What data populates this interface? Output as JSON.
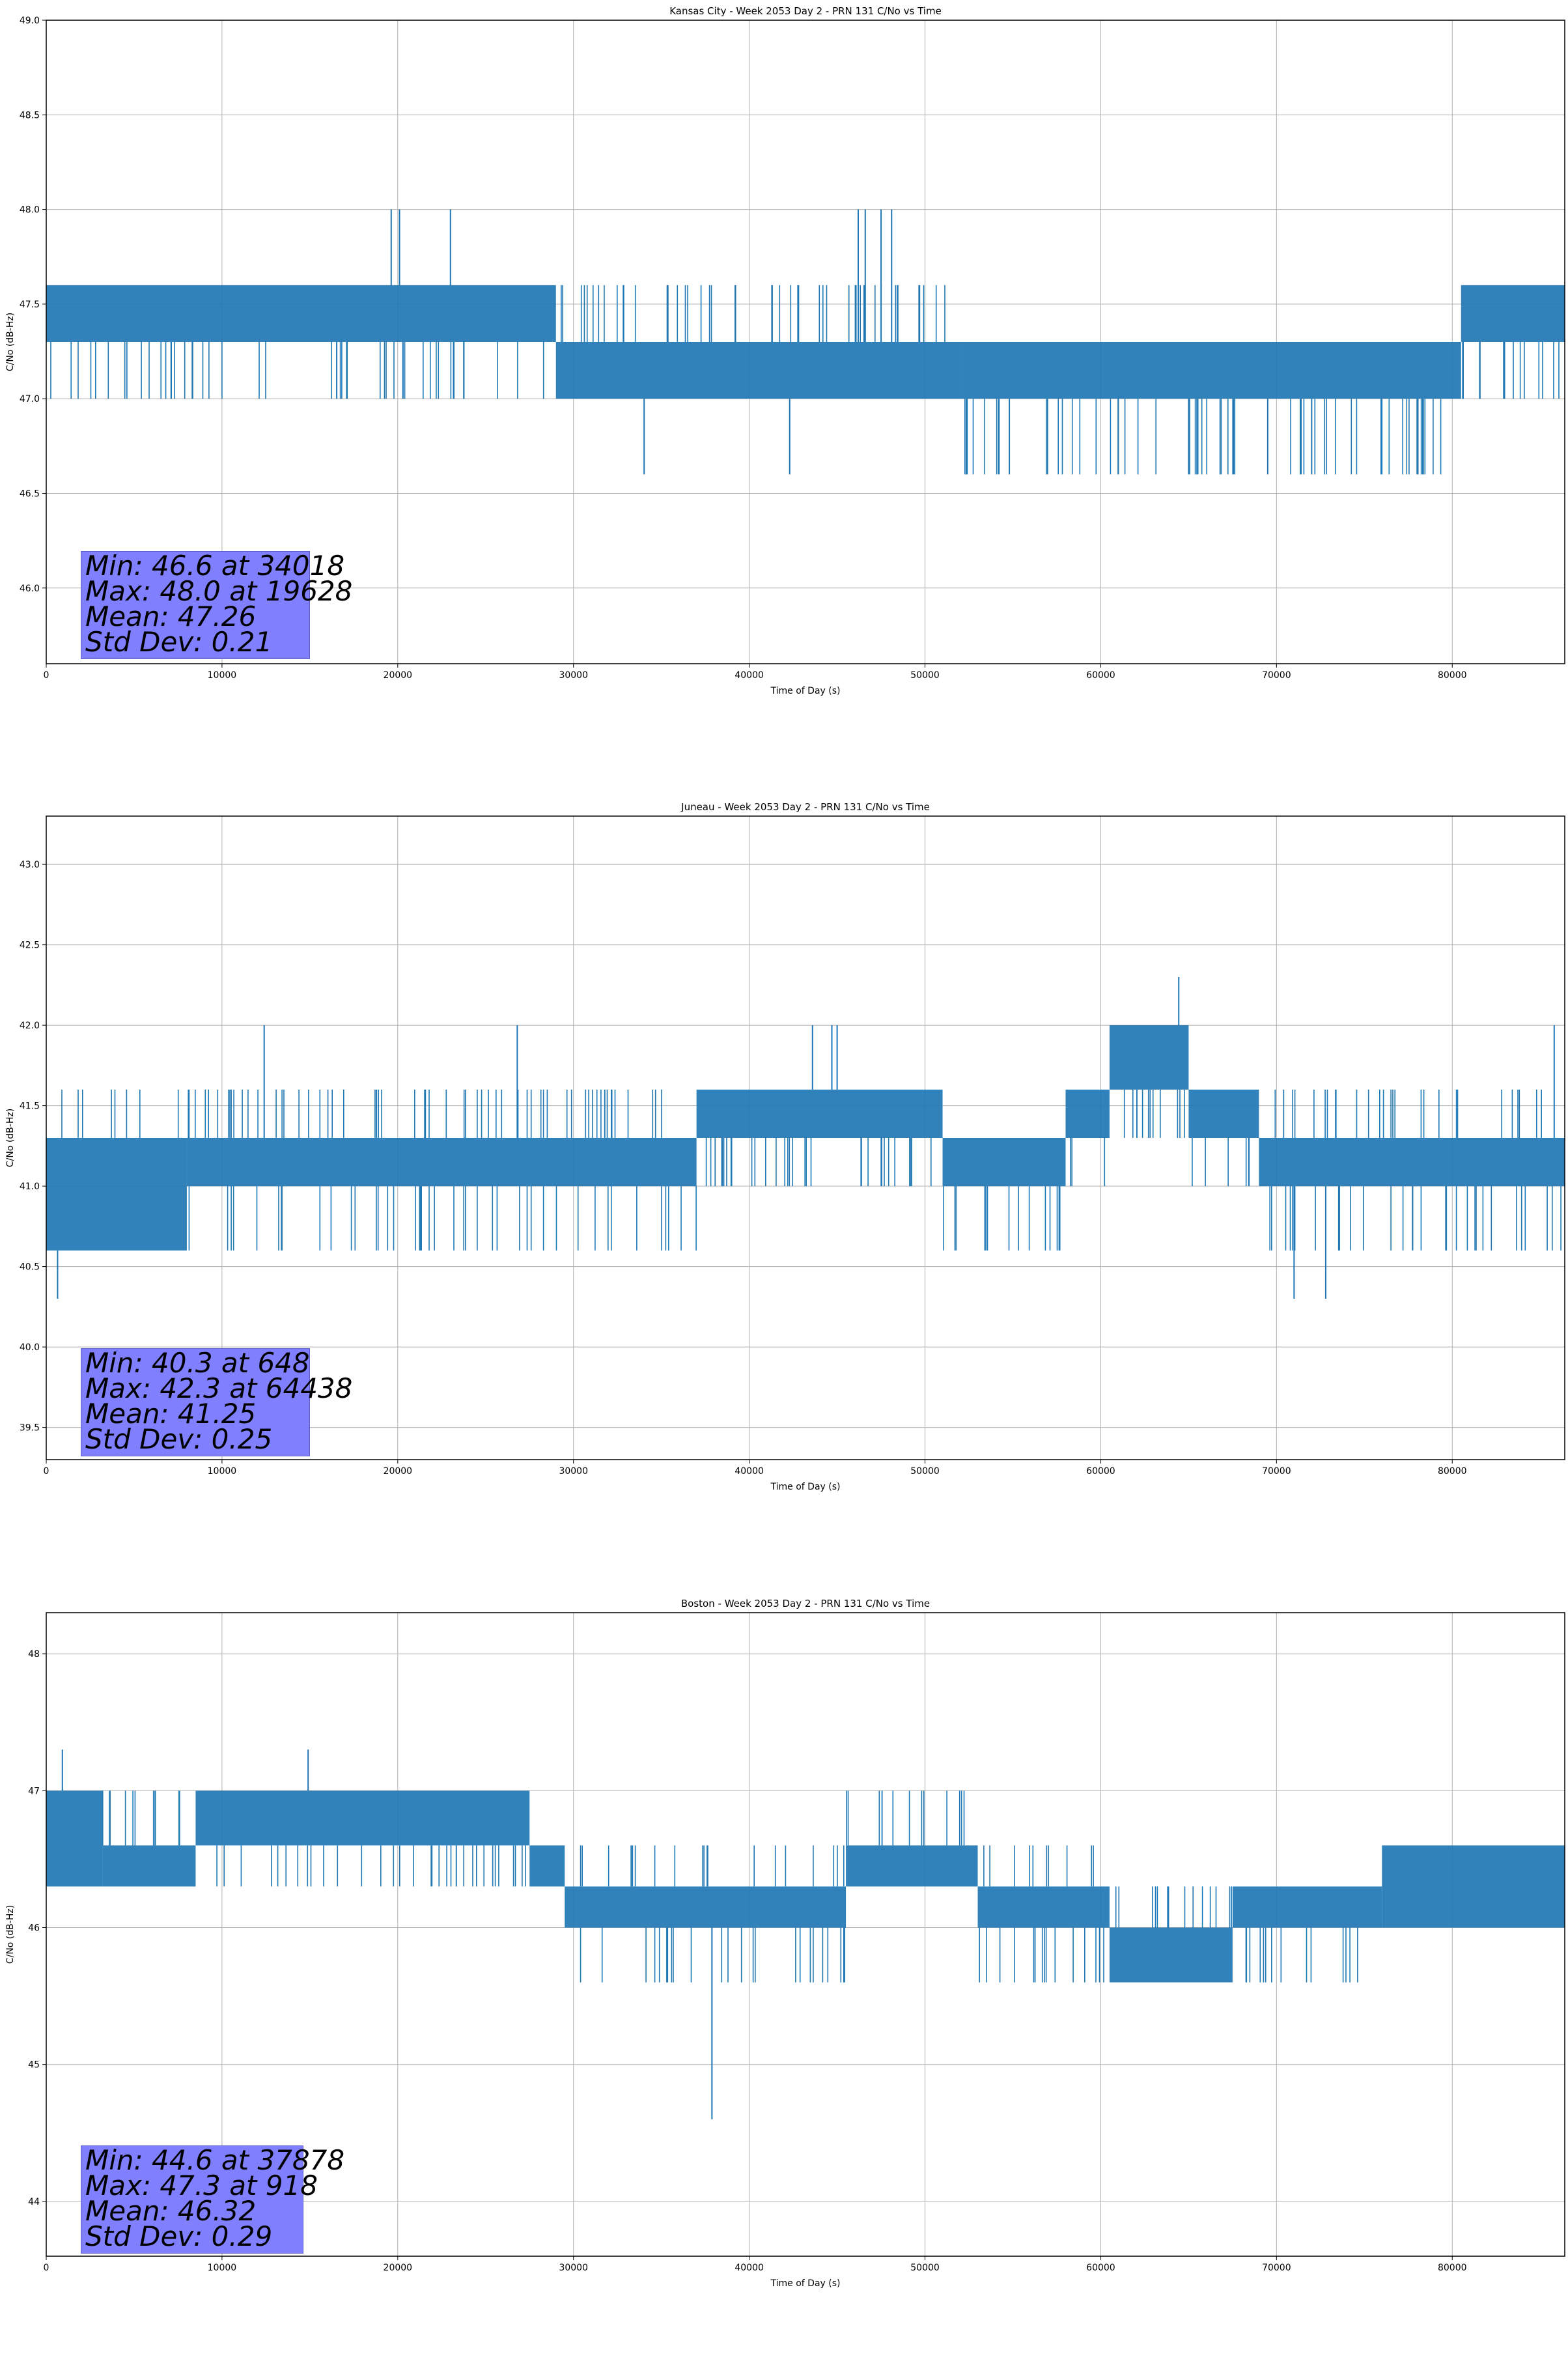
{
  "chart_data": [
    {
      "type": "line",
      "title": "Kansas City - Week 2053 Day 2 - PRN 131 C/No vs Time",
      "xlabel": "Time of Day (s)",
      "ylabel": "C/No (dB-Hz)",
      "xlim": [
        0,
        86400
      ],
      "ylim": [
        45.6,
        49.0
      ],
      "xticks": [
        "0",
        "10000",
        "20000",
        "30000",
        "40000",
        "50000",
        "60000",
        "70000",
        "80000"
      ],
      "yticks": [
        "46.0",
        "46.5",
        "47.0",
        "47.5",
        "48.0",
        "48.5",
        "49.0"
      ],
      "grid": true,
      "series_color": "#1f77b4",
      "levels": [
        47.0,
        47.3,
        47.6
      ],
      "segments": [
        {
          "x": [
            0,
            29000
          ],
          "low": 47.3,
          "high": 47.6,
          "sparse_low": 47.0
        },
        {
          "x": [
            29000,
            52000
          ],
          "low": 47.0,
          "high": 47.3,
          "sparse_high": 47.6
        },
        {
          "x": [
            52000,
            80500
          ],
          "low": 47.0,
          "high": 47.3,
          "sparse_low": 46.6
        },
        {
          "x": [
            80500,
            86400
          ],
          "low": 47.3,
          "high": 47.6,
          "sparse_low": 47.0
        }
      ],
      "spikes": [
        [
          19628,
          48.0
        ],
        [
          20100,
          48.0
        ],
        [
          23000,
          48.0
        ],
        [
          46200,
          48.0
        ],
        [
          46600,
          48.0
        ],
        [
          47500,
          48.0
        ],
        [
          48100,
          48.0
        ],
        [
          34018,
          46.6
        ],
        [
          42300,
          46.6
        ],
        [
          54800,
          46.6
        ],
        [
          61000,
          46.6
        ],
        [
          65000,
          46.6
        ],
        [
          69500,
          46.6
        ],
        [
          72000,
          46.6
        ],
        [
          78000,
          46.6
        ]
      ],
      "stats": {
        "min": "Min: 46.6 at 34018",
        "max": "Max: 48.0 at 19628",
        "mean": "Mean: 47.26",
        "std": "Std Dev: 0.21"
      }
    },
    {
      "type": "line",
      "title": "Juneau - Week 2053 Day 2 - PRN 131 C/No vs Time",
      "xlabel": "Time of Day (s)",
      "ylabel": "C/No (dB-Hz)",
      "xlim": [
        0,
        86400
      ],
      "ylim": [
        39.3,
        43.3
      ],
      "xticks": [
        "0",
        "10000",
        "20000",
        "30000",
        "40000",
        "50000",
        "60000",
        "70000",
        "80000"
      ],
      "yticks": [
        "39.5",
        "40.0",
        "40.5",
        "41.0",
        "41.5",
        "42.0",
        "42.5",
        "43.0"
      ],
      "grid": true,
      "series_color": "#1f77b4",
      "levels": [
        40.6,
        41.0,
        41.3,
        41.6,
        42.0
      ],
      "segments": [
        {
          "x": [
            0,
            8000
          ],
          "low": 40.6,
          "high": 41.3,
          "sparse_high": 41.6
        },
        {
          "x": [
            8000,
            37000
          ],
          "low": 41.0,
          "high": 41.3,
          "sparse_high": 41.6,
          "sparse_low": 40.6
        },
        {
          "x": [
            37000,
            51000
          ],
          "low": 41.3,
          "high": 41.6,
          "sparse_low": 41.0
        },
        {
          "x": [
            51000,
            58000
          ],
          "low": 41.0,
          "high": 41.3,
          "sparse_low": 40.6
        },
        {
          "x": [
            58000,
            60500
          ],
          "low": 41.3,
          "high": 41.6,
          "sparse_low": 41.0
        },
        {
          "x": [
            60500,
            65000
          ],
          "low": 41.6,
          "high": 42.0,
          "sparse_low": 41.3
        },
        {
          "x": [
            65000,
            69000
          ],
          "low": 41.3,
          "high": 41.6,
          "sparse_low": 41.0
        },
        {
          "x": [
            69000,
            86400
          ],
          "low": 41.0,
          "high": 41.3,
          "sparse_low": 40.6,
          "sparse_high": 41.6
        }
      ],
      "spikes": [
        [
          648,
          40.3
        ],
        [
          12400,
          42.0
        ],
        [
          26800,
          42.0
        ],
        [
          43600,
          42.0
        ],
        [
          44700,
          42.0
        ],
        [
          45000,
          42.0
        ],
        [
          64438,
          42.3
        ],
        [
          71000,
          40.3
        ],
        [
          72800,
          40.3
        ],
        [
          85800,
          42.0
        ]
      ],
      "stats": {
        "min": "Min: 40.3 at 648",
        "max": "Max: 42.3 at 64438",
        "mean": "Mean: 41.25",
        "std": "Std Dev: 0.25"
      }
    },
    {
      "type": "line",
      "title": "Boston - Week 2053 Day 2 - PRN 131 C/No vs Time",
      "xlabel": "Time of Day (s)",
      "ylabel": "C/No (dB-Hz)",
      "xlim": [
        0,
        86400
      ],
      "ylim": [
        43.6,
        48.3
      ],
      "xticks": [
        "0",
        "10000",
        "20000",
        "30000",
        "40000",
        "50000",
        "60000",
        "70000",
        "80000"
      ],
      "yticks": [
        "44",
        "45",
        "46",
        "47",
        "48"
      ],
      "grid": true,
      "series_color": "#1f77b4",
      "levels": [
        45.6,
        46.0,
        46.3,
        46.6,
        47.0
      ],
      "segments": [
        {
          "x": [
            0,
            3200
          ],
          "low": 46.3,
          "high": 47.0
        },
        {
          "x": [
            3200,
            8500
          ],
          "low": 46.3,
          "high": 46.6,
          "sparse_high": 47.0
        },
        {
          "x": [
            8500,
            27500
          ],
          "low": 46.6,
          "high": 47.0,
          "sparse_low": 46.3
        },
        {
          "x": [
            27500,
            29500
          ],
          "low": 46.3,
          "high": 46.6
        },
        {
          "x": [
            29500,
            45500
          ],
          "low": 46.0,
          "high": 46.3,
          "sparse_low": 45.6,
          "sparse_high": 46.6
        },
        {
          "x": [
            45500,
            53000
          ],
          "low": 46.3,
          "high": 46.6,
          "sparse_high": 47.0
        },
        {
          "x": [
            53000,
            60500
          ],
          "low": 46.0,
          "high": 46.3,
          "sparse_low": 45.6,
          "sparse_high": 46.6
        },
        {
          "x": [
            60500,
            67500
          ],
          "low": 45.6,
          "high": 46.0,
          "sparse_high": 46.3
        },
        {
          "x": [
            67500,
            76000
          ],
          "low": 46.0,
          "high": 46.3,
          "sparse_low": 45.6
        },
        {
          "x": [
            76000,
            86400
          ],
          "low": 46.0,
          "high": 46.6
        }
      ],
      "spikes": [
        [
          918,
          47.3
        ],
        [
          14900,
          47.3
        ],
        [
          37878,
          44.6
        ]
      ],
      "stats": {
        "min": "Min: 44.6 at 37878",
        "max": "Max: 47.3 at 918",
        "mean": "Mean: 46.32",
        "std": "Std Dev: 0.29"
      }
    }
  ]
}
